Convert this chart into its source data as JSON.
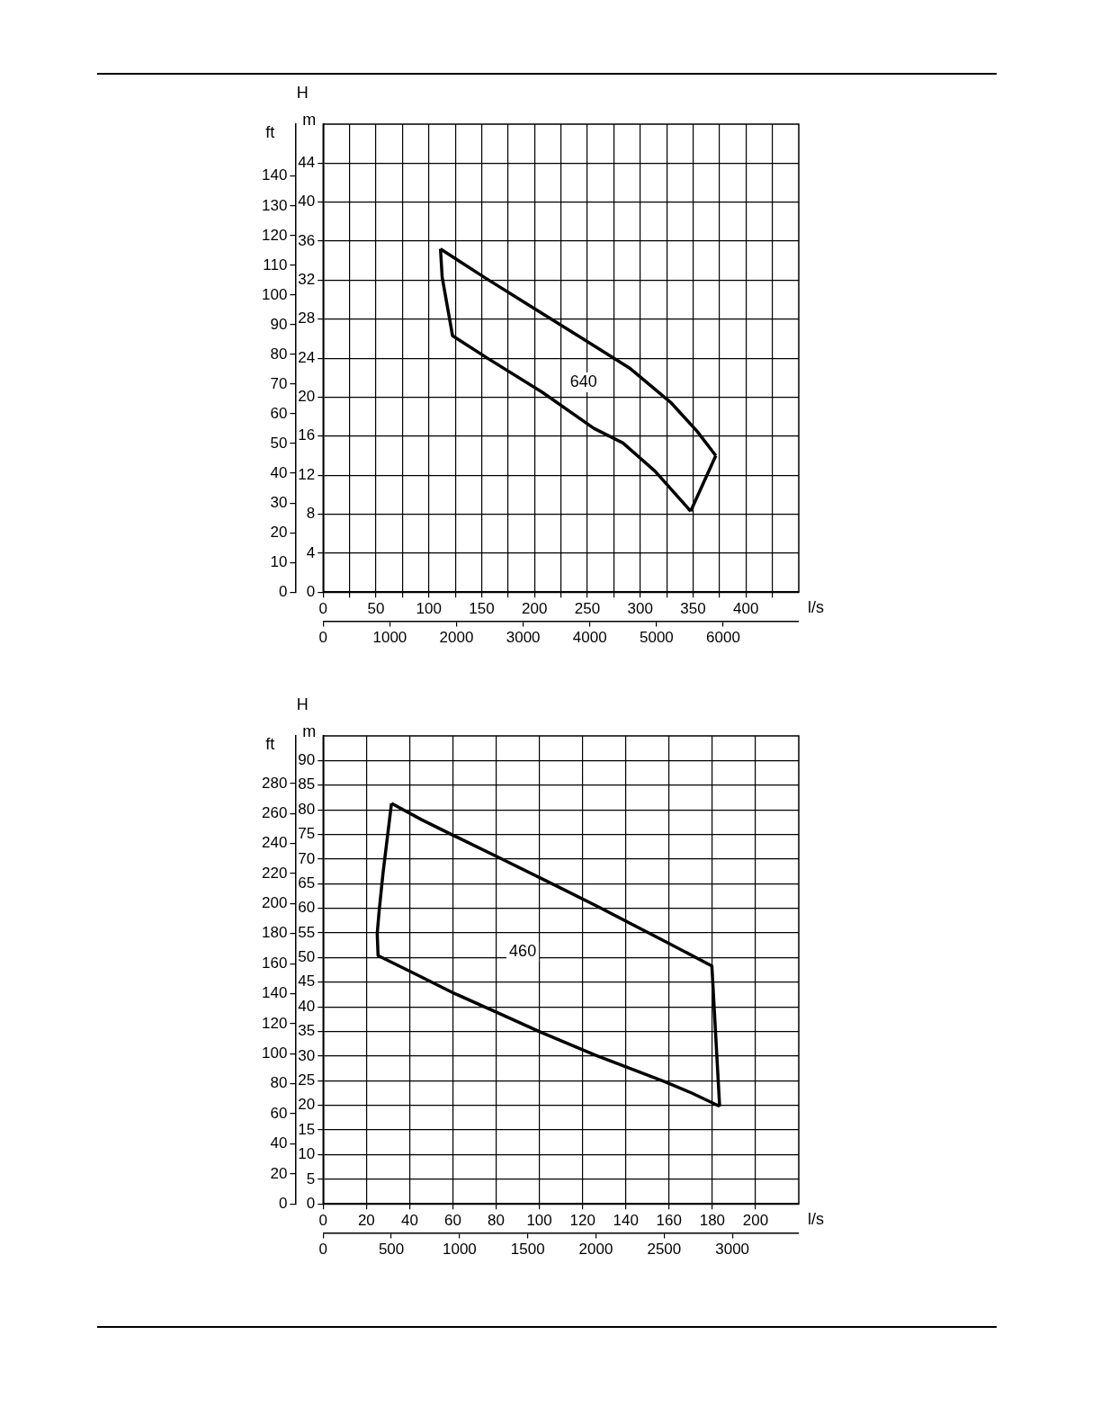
{
  "chart_data": [
    {
      "type": "line",
      "xlabel": "l/s",
      "ylabel": "m",
      "y2label": "ft",
      "grid": true,
      "marker": "none",
      "line_style": "solid",
      "annotations": [
        "H",
        "640"
      ],
      "xlim": [
        0,
        450
      ],
      "xticks": [
        0,
        {
          "value": 25,
          "label": null
        },
        50,
        {
          "value": 75,
          "label": null
        },
        100,
        {
          "value": 125,
          "label": null
        },
        150,
        {
          "value": 175,
          "label": null
        },
        200,
        {
          "value": 225,
          "label": null
        },
        250,
        {
          "value": 275,
          "label": null
        },
        300,
        {
          "value": 325,
          "label": null
        },
        350,
        {
          "value": 375,
          "label": null
        },
        400,
        {
          "value": 425,
          "label": null
        }
      ],
      "x2lim": [
        0,
        7133
      ],
      "x2ticks": [
        0,
        1000,
        2000,
        3000,
        4000,
        5000,
        6000
      ],
      "ylim": [
        0,
        48
      ],
      "yticks": [
        0,
        4,
        8,
        12,
        16,
        20,
        24,
        28,
        32,
        36,
        40,
        44
      ],
      "y2lim": [
        0,
        157.5
      ],
      "y2ticks": [
        0,
        10,
        20,
        30,
        40,
        50,
        60,
        70,
        80,
        90,
        100,
        110,
        120,
        130,
        140
      ],
      "series": [
        {
          "color": "#000000",
          "x": [
            111,
            152.3,
            198.1,
            247,
            289.7,
            329.4,
            353.8,
            371.5
          ],
          "values": [
            35.2,
            32.3,
            29.2,
            25.9,
            23.0,
            19.4,
            16.5,
            14.0
          ]
        },
        {
          "color": "#000000",
          "x": [
            111,
            112.6,
            122.4,
            155.4,
            207.3,
            256.1,
            283.6,
            314.1,
            347.7
          ],
          "values": [
            35.2,
            32.3,
            26.3,
            24.0,
            20.5,
            16.8,
            15.3,
            12.4,
            8.3
          ]
        },
        {
          "color": "#000000",
          "x": [
            347.7,
            371.5
          ],
          "values": [
            8.3,
            14.0
          ]
        }
      ]
    },
    {
      "type": "line",
      "xlabel": "l/s",
      "ylabel": "m",
      "y2label": "ft",
      "grid": true,
      "marker": "none",
      "line_style": "solid",
      "annotations": [
        "H",
        "460"
      ],
      "xlim": [
        0,
        220
      ],
      "xticks": [
        0,
        20,
        40,
        60,
        80,
        100,
        120,
        140,
        160,
        180,
        200
      ],
      "x2lim": [
        0,
        3487
      ],
      "x2ticks": [
        0,
        500,
        1000,
        1500,
        2000,
        2500,
        3000
      ],
      "ylim": [
        0,
        95
      ],
      "yticks": [
        0,
        5,
        10,
        15,
        20,
        25,
        30,
        35,
        40,
        45,
        50,
        55,
        60,
        65,
        70,
        75,
        80,
        85,
        90
      ],
      "y2lim": [
        0,
        311.7
      ],
      "y2ticks": [
        0,
        20,
        40,
        60,
        80,
        100,
        120,
        140,
        160,
        180,
        200,
        220,
        240,
        260,
        280
      ],
      "series": [
        {
          "color": "#000000",
          "x": [
            31.6,
            45.5,
            59.8,
            81.3,
            106.3,
            127.7,
            159.8,
            179.8,
            183.4
          ],
          "values": [
            81.3,
            78.0,
            74.9,
            70.3,
            64.9,
            60.2,
            52.9,
            48.3,
            19.8
          ]
        },
        {
          "color": "#000000",
          "x": [
            31.6,
            27.7,
            25.9,
            25.0,
            25.4,
            40.2,
            59.8,
            81.3,
            100.9,
            125.9,
            158,
            170.5,
            183.4
          ],
          "values": [
            81.3,
            67.2,
            59.5,
            54.9,
            50.4,
            47.2,
            42.9,
            38.7,
            34.8,
            30.2,
            24.8,
            22.5,
            19.8
          ]
        }
      ]
    }
  ]
}
